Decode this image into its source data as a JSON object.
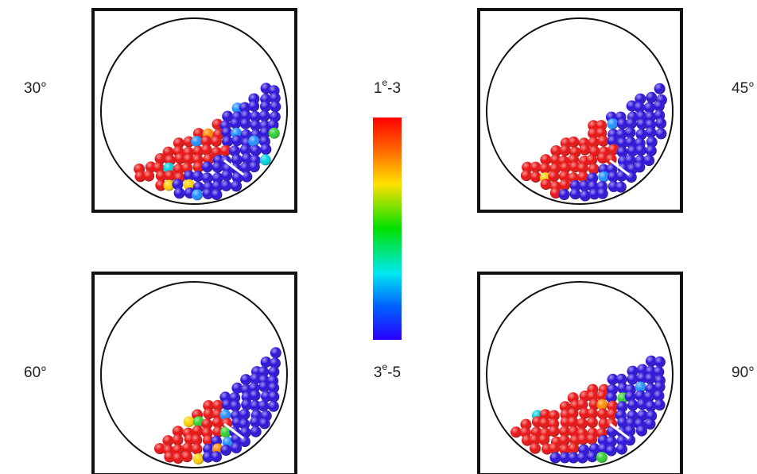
{
  "panels": [
    {
      "label": "30°"
    },
    {
      "label": "45°"
    },
    {
      "label": "60°"
    },
    {
      "label": "90°"
    }
  ],
  "colorbar": {
    "max": {
      "base": "1",
      "sup": "e",
      "rest": "-3"
    },
    "min": {
      "base": "3",
      "sup": "e",
      "rest": "-5"
    }
  }
}
